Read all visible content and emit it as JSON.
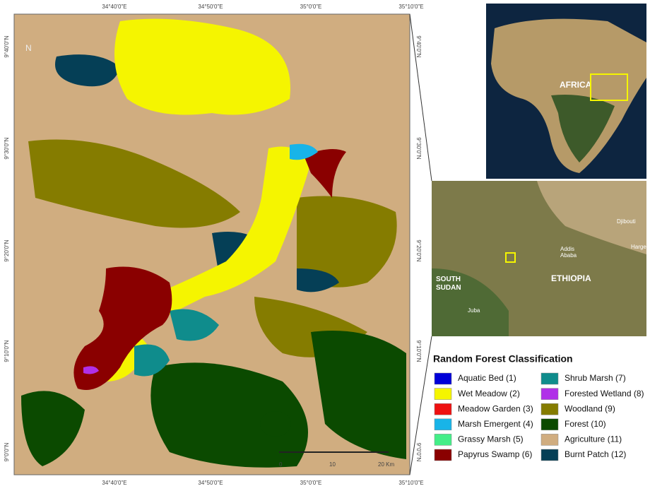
{
  "map": {
    "lon_labels": [
      "34°40'0\"E",
      "34°50'0\"E",
      "35°0'0\"E",
      "35°10'0\"E"
    ],
    "lat_labels": [
      "9°40'0\"N",
      "9°30'0\"N",
      "9°20'0\"N",
      "9°10'0\"N",
      "9°0'0\"N"
    ],
    "north": "N",
    "scale_labels": [
      "0",
      "10",
      "20 Km"
    ]
  },
  "inset_africa": {
    "label": "AFRICA"
  },
  "inset_region": {
    "labels": [
      "Djibouti",
      "Harge",
      "Addis",
      "Ababa",
      "ETHIOPIA",
      "SOUTH",
      "SUDAN",
      "Juba"
    ]
  },
  "legend": {
    "title": "Random Forest Classification",
    "items": [
      {
        "label": "Aquatic Bed (1)",
        "color": "#0000d8"
      },
      {
        "label": "Wet Meadow (2)",
        "color": "#f5f500"
      },
      {
        "label": "Meadow Garden (3)",
        "color": "#ee1111"
      },
      {
        "label": "Marsh Emergent (4)",
        "color": "#18b4e8"
      },
      {
        "label": "Grassy Marsh (5)",
        "color": "#44ee88"
      },
      {
        "label": "Papyrus Swamp (6)",
        "color": "#8a0000"
      },
      {
        "label": "Shrub Marsh (7)",
        "color": "#0f8c8c"
      },
      {
        "label": "Forested Wetland (8)",
        "color": "#b030e8"
      },
      {
        "label": "Woodland (9)",
        "color": "#857c00"
      },
      {
        "label": "Forest (10)",
        "color": "#0b4a00"
      },
      {
        "label": "Agriculture (11)",
        "color": "#d0ad80"
      },
      {
        "label": "Burnt Patch (12)",
        "color": "#053f56"
      }
    ]
  }
}
